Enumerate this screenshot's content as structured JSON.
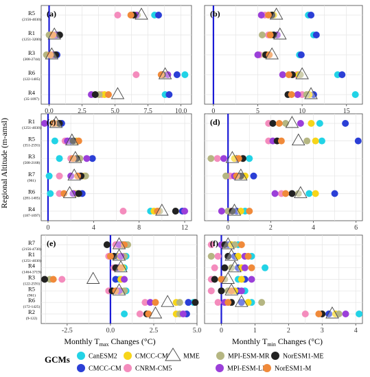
{
  "figure": {
    "y_axis_label": "Regional Altitude (m-amsl)",
    "x_label_left": "Monthly T",
    "x_label_left_sub": "max",
    "x_label_left_rest": " Changes (",
    "x_label_right": "Monthly T",
    "x_label_right_sub": "min",
    "x_label_right_rest": " Changes (",
    "x_label_unit": "°C)",
    "legend_title": "GCMs"
  },
  "legend": [
    {
      "name": "CanESM2",
      "color": "#22d3e6",
      "shape": "circle"
    },
    {
      "name": "CMCC-CMS",
      "color": "#f7d51a",
      "shape": "circle"
    },
    {
      "name": "MME",
      "color": "#ffffff",
      "shape": "triangle"
    },
    {
      "name": "MPI-ESM-MR",
      "color": "#b5b682",
      "shape": "circle"
    },
    {
      "name": "NorESM1-ME",
      "color": "#222222",
      "shape": "circle"
    },
    {
      "name": "CMCC-CM",
      "color": "#2b3fd6",
      "shape": "circle"
    },
    {
      "name": "CNRM-CM5",
      "color": "#f48cbd",
      "shape": "circle"
    },
    {
      "name": "MPI-ESM-LR",
      "color": "#9b3fd9",
      "shape": "circle"
    },
    {
      "name": "NorESM1-M",
      "color": "#f08a3a",
      "shape": "circle"
    }
  ],
  "chart_data": [
    {
      "panel": "(a)",
      "type": "scatter",
      "xlim": [
        -0.6,
        10.8
      ],
      "xticks": [
        0.0,
        2.5,
        5.0,
        7.5,
        10.0
      ],
      "xtick_labels": [
        "0.0",
        "2.5",
        "5.0",
        "7.5",
        "10.0"
      ],
      "rows": [
        {
          "region": "R5",
          "range": "(2156-4030)",
          "values": {
            "CanESM2": 8.0,
            "CMCC-CMS": 6.5,
            "MPI-ESM-MR": 6.7,
            "NorESM1-ME": 6.4,
            "CMCC-CM": 8.3,
            "CNRM-CM5": 5.2,
            "MPI-ESM-LR": 6.6,
            "NorESM1-M": 6.2,
            "MME": 7.0
          }
        },
        {
          "region": "R1",
          "range": "(1251-3200)",
          "values": {
            "CanESM2": 0.4,
            "CMCC-CMS": 0.2,
            "MPI-ESM-MR": 0.0,
            "NorESM1-ME": 0.8,
            "CMCC-CM": 0.6,
            "CNRM-CM5": 0.1,
            "MPI-ESM-LR": 0.5,
            "NorESM1-M": 0.3,
            "MME": 0.4
          }
        },
        {
          "region": "R3",
          "range": "(308-2744)",
          "values": {
            "CanESM2": 0.3,
            "CMCC-CMS": 0.2,
            "MPI-ESM-MR": -0.2,
            "NorESM1-ME": 0.5,
            "CMCC-CM": 0.6,
            "CNRM-CM5": 0.4,
            "MPI-ESM-LR": 0.3,
            "NorESM1-M": 0.1,
            "MME": 0.2
          }
        },
        {
          "region": "R6",
          "range": "(122-1405)",
          "values": {
            "CanESM2": 10.3,
            "CMCC-CMS": 8.8,
            "MPI-ESM-MR": 8.7,
            "NorESM1-ME": 8.6,
            "CMCC-CM": 9.7,
            "CNRM-CM5": 6.6,
            "MPI-ESM-LR": 9.0,
            "NorESM1-M": 8.5,
            "MME": 8.8
          }
        },
        {
          "region": "R4",
          "range": "(35-1097)",
          "values": {
            "CanESM2": 8.8,
            "CMCC-CMS": 4.2,
            "MPI-ESM-MR": 3.8,
            "NorESM1-ME": 3.5,
            "CMCC-CM": 9.1,
            "CNRM-CM5": 4.0,
            "MPI-ESM-LR": 3.2,
            "NorESM1-M": 4.5,
            "MME": 5.2
          }
        }
      ]
    },
    {
      "panel": "(b)",
      "type": "scatter",
      "xlim": [
        -1.0,
        16.8
      ],
      "xticks": [
        0,
        5,
        10,
        15
      ],
      "xtick_labels": [
        "0",
        "5",
        "10",
        "15"
      ],
      "rows": [
        {
          "region": "R5",
          "range": "",
          "values": {
            "CanESM2": 10.7,
            "CMCC-CMS": 6.8,
            "MPI-ESM-MR": 6.5,
            "NorESM1-ME": 6.6,
            "CMCC-CM": 11.0,
            "CNRM-CM5": 5.8,
            "MPI-ESM-LR": 5.4,
            "NorESM1-M": 6.2,
            "MME": 7.1
          }
        },
        {
          "region": "R1",
          "range": "",
          "values": {
            "CanESM2": 11.3,
            "CMCC-CMS": 6.5,
            "MPI-ESM-MR": 5.5,
            "NorESM1-ME": 6.8,
            "CMCC-CM": 11.6,
            "CNRM-CM5": 6.2,
            "MPI-ESM-LR": 7.2,
            "NorESM1-M": 6.4,
            "MME": 7.5
          }
        },
        {
          "region": "R3",
          "range": "",
          "values": {
            "CanESM2": 9.7,
            "CMCC-CMS": 6.0,
            "MPI-ESM-MR": 5.8,
            "NorESM1-ME": 5.9,
            "CMCC-CM": 9.9,
            "CNRM-CM5": 5.2,
            "MPI-ESM-LR": 5.0,
            "NorESM1-M": 6.3,
            "MME": 6.6
          }
        },
        {
          "region": "R6",
          "range": "",
          "values": {
            "CanESM2": 14.0,
            "CMCC-CMS": 9.6,
            "MPI-ESM-MR": 9.8,
            "NorESM1-ME": 8.9,
            "CMCC-CM": 14.5,
            "CNRM-CM5": 9.4,
            "MPI-ESM-LR": 7.8,
            "NorESM1-M": 8.5,
            "MME": 10.0
          }
        },
        {
          "region": "R4",
          "range": "",
          "values": {
            "CanESM2": 16.0,
            "CMCC-CMS": 10.8,
            "MPI-ESM-MR": 10.5,
            "NorESM1-ME": 8.4,
            "CMCC-CM": 11.3,
            "CNRM-CM5": 10.0,
            "MPI-ESM-LR": 9.5,
            "NorESM1-M": 8.8,
            "MME": 11.0
          }
        }
      ]
    },
    {
      "panel": "(c)",
      "type": "scatter",
      "xlim": [
        -0.6,
        12.6
      ],
      "xticks": [
        0,
        4,
        8,
        12
      ],
      "xtick_labels": [
        "0",
        "4",
        "8",
        "12"
      ],
      "rows": [
        {
          "region": "R1",
          "range": "(1251-4030)",
          "values": {
            "CanESM2": 0.6,
            "CMCC-CMS": 0.9,
            "MPI-ESM-MR": 0.4,
            "NorESM1-ME": 1.0,
            "CMCC-CM": 1.2,
            "CNRM-CM5": 0.7,
            "MPI-ESM-LR": -0.3,
            "NorESM1-M": 0.5,
            "MME": 0.7
          }
        },
        {
          "region": "R5",
          "range": "(351-2591)",
          "values": {
            "CanESM2": 0.6,
            "CMCC-CMS": 2.5,
            "MPI-ESM-MR": 2.3,
            "NorESM1-ME": 2.2,
            "CMCC-CM": 2.0,
            "CNRM-CM5": 1.5,
            "MPI-ESM-LR": 1.7,
            "NorESM1-M": 2.7,
            "MME": 2.1
          }
        },
        {
          "region": "R3",
          "range": "(508-2168)",
          "values": {
            "CanESM2": 1.0,
            "CMCC-CMS": 2.7,
            "MPI-ESM-MR": 2.8,
            "NorESM1-ME": 2.5,
            "CMCC-CM": 3.9,
            "CNRM-CM5": 2.0,
            "MPI-ESM-LR": 3.4,
            "NorESM1-M": 2.2,
            "MME": 2.4
          }
        },
        {
          "region": "R7",
          "range": "(961)",
          "values": {
            "CanESM2": 0.1,
            "CMCC-CMS": 3.2,
            "MPI-ESM-MR": 3.3,
            "NorESM1-ME": 2.9,
            "CMCC-CM": 2.8,
            "CNRM-CM5": 1.0,
            "MPI-ESM-LR": 2.0,
            "NorESM1-M": 2.6,
            "MME": 2.3
          }
        },
        {
          "region": "R6",
          "range": "(281-1405)",
          "values": {
            "CanESM2": 0.2,
            "CMCC-CMS": 2.4,
            "MPI-ESM-MR": 2.6,
            "NorESM1-ME": 2.7,
            "CMCC-CM": 3.0,
            "CNRM-CM5": 1.0,
            "MPI-ESM-LR": 2.2,
            "NorESM1-M": 1.4,
            "MME": 1.9
          }
        },
        {
          "region": "R4",
          "range": "(187-1097)",
          "values": {
            "CanESM2": 9.0,
            "CMCC-CMS": 9.3,
            "MPI-ESM-MR": 9.8,
            "NorESM1-ME": 11.2,
            "CMCC-CM": 11.8,
            "CNRM-CM5": 6.6,
            "MPI-ESM-LR": 12.0,
            "NorESM1-M": 9.6,
            "MME": 10.0
          }
        }
      ]
    },
    {
      "panel": "(d)",
      "type": "scatter",
      "xlim": [
        -1.1,
        6.3
      ],
      "xticks": [
        0,
        2,
        4,
        6
      ],
      "xtick_labels": [
        "0",
        "2",
        "4",
        "6"
      ],
      "rows": [
        {
          "region": "R1",
          "range": "",
          "values": {
            "CanESM2": 4.3,
            "CMCC-CMS": 3.9,
            "MPI-ESM-MR": 2.7,
            "NorESM1-ME": 2.1,
            "CMCC-CM": 5.5,
            "CNRM-CM5": 1.9,
            "MPI-ESM-LR": 3.4,
            "NorESM1-M": 2.4,
            "MME": 3.0
          }
        },
        {
          "region": "R5",
          "range": "",
          "values": {
            "CanESM2": 4.4,
            "CMCC-CMS": 4.1,
            "MPI-ESM-MR": 3.7,
            "NorESM1-ME": 2.3,
            "CMCC-CM": 6.1,
            "CNRM-CM5": 1.9,
            "MPI-ESM-LR": 2.1,
            "NorESM1-M": 2.5,
            "MME": 3.3
          }
        },
        {
          "region": "R3",
          "range": "",
          "values": {
            "CanESM2": 1.0,
            "CMCC-CMS": 0.3,
            "MPI-ESM-MR": -0.8,
            "NorESM1-ME": 0.7,
            "CMCC-CM": 0.4,
            "CNRM-CM5": -0.5,
            "MPI-ESM-LR": -0.2,
            "NorESM1-M": 0.5,
            "MME": 0.2
          }
        },
        {
          "region": "R7",
          "range": "",
          "values": {
            "CanESM2": 0.5,
            "CMCC-CMS": 0.8,
            "MPI-ESM-MR": -0.1,
            "NorESM1-ME": 0.6,
            "CMCC-CM": 1.2,
            "CNRM-CM5": 0.1,
            "MPI-ESM-LR": 0.3,
            "NorESM1-M": 0.4,
            "MME": 0.6
          }
        },
        {
          "region": "R6",
          "range": "",
          "values": {
            "CanESM2": 3.8,
            "CMCC-CMS": 4.1,
            "MPI-ESM-MR": 3.3,
            "NorESM1-ME": 3.0,
            "CMCC-CM": 5.0,
            "CNRM-CM5": 2.5,
            "MPI-ESM-LR": 2.2,
            "NorESM1-M": 2.7,
            "MME": 3.4
          }
        },
        {
          "region": "R4",
          "range": "",
          "values": {
            "CanESM2": 0.8,
            "CMCC-CMS": 0.6,
            "MPI-ESM-MR": 0.0,
            "NorESM1-ME": 0.2,
            "CMCC-CM": 0.4,
            "CNRM-CM5": 0.1,
            "MPI-ESM-LR": -0.3,
            "NorESM1-M": 1.0,
            "MME": 0.3
          }
        }
      ]
    },
    {
      "panel": "(e)",
      "type": "scatter",
      "xlim": [
        -4.0,
        5.0
      ],
      "xticks": [
        -2.5,
        0.0,
        2.5,
        5.0
      ],
      "xtick_labels": [
        "-2.5",
        "0.0",
        "2.5",
        "5.0"
      ],
      "rows": [
        {
          "region": "R7",
          "range": "(2156-4730)",
          "values": {
            "CanESM2": 0.9,
            "CMCC-CMS": 0.6,
            "MPI-ESM-MR": 1.0,
            "NorESM1-ME": -0.2,
            "CMCC-CM": 0.7,
            "CNRM-CM5": 0.3,
            "MPI-ESM-LR": 0.5,
            "NorESM1-M": 0.8,
            "MME": 0.5
          }
        },
        {
          "region": "R1",
          "range": "(1251-4030)",
          "values": {
            "CanESM2": 0.9,
            "CMCC-CMS": 0.5,
            "MPI-ESM-MR": 0.8,
            "NorESM1-ME": 0.2,
            "CMCC-CM": 0.4,
            "CNRM-CM5": -0.1,
            "MPI-ESM-LR": 0.6,
            "NorESM1-M": 0.0,
            "MME": 0.5
          }
        },
        {
          "region": "R4",
          "range": "(1464-3719)",
          "values": {
            "CanESM2": 0.8,
            "CMCC-CMS": 0.7,
            "MPI-ESM-MR": 0.6,
            "NorESM1-ME": 0.3,
            "CMCC-CM": 0.5,
            "CNRM-CM5": 0.2,
            "MPI-ESM-LR": 0.4,
            "NorESM1-M": 0.6,
            "MME": 0.6
          }
        },
        {
          "region": "R3",
          "range": "(122-2591)",
          "values": {
            "CanESM2": 0.5,
            "CMCC-CMS": 0.6,
            "MPI-ESM-MR": -3.5,
            "NorESM1-ME": -3.8,
            "CMCC-CM": 0.3,
            "CNRM-CM5": -2.8,
            "MPI-ESM-LR": 0.8,
            "NorESM1-M": -3.3,
            "MME": -1.0
          }
        },
        {
          "region": "R5",
          "range": "(961)",
          "values": {
            "CanESM2": 0.9,
            "CMCC-CMS": 0.6,
            "MPI-ESM-MR": 0.8,
            "NorESM1-ME": 0.1,
            "CMCC-CM": 0.0,
            "CNRM-CM5": -0.1,
            "MPI-ESM-LR": 0.5,
            "NorESM1-M": 0.3,
            "MME": 0.5
          }
        },
        {
          "region": "R6",
          "range": "(172-1425)",
          "values": {
            "CanESM2": 4.8,
            "CMCC-CMS": 3.8,
            "MPI-ESM-MR": 4.0,
            "NorESM1-ME": 4.9,
            "CMCC-CM": 4.5,
            "CNRM-CM5": 2.0,
            "MPI-ESM-LR": 2.3,
            "NorESM1-M": 2.6,
            "MME": 3.3
          }
        },
        {
          "region": "R2",
          "range": "(9-122)",
          "values": {
            "CanESM2": 0.8,
            "CMCC-CMS": 3.8,
            "MPI-ESM-MR": 4.0,
            "NorESM1-ME": 2.1,
            "CMCC-CM": 4.4,
            "CNRM-CM5": 1.7,
            "MPI-ESM-LR": 4.2,
            "NorESM1-M": 2.2,
            "MME": 2.6
          }
        }
      ]
    },
    {
      "panel": "(f)",
      "type": "scatter",
      "xlim": [
        -0.5,
        4.2
      ],
      "xticks": [
        0,
        1,
        2,
        3,
        4
      ],
      "xtick_labels": [
        "0",
        "1",
        "2",
        "3",
        "4"
      ],
      "rows": [
        {
          "region": "R7",
          "range": "",
          "values": {
            "CanESM2": 0.5,
            "CMCC-CMS": 0.3,
            "MPI-ESM-MR": 0.4,
            "NorESM1-ME": 0.1,
            "CMCC-CM": 0.2,
            "CNRM-CM5": -0.3,
            "MPI-ESM-LR": 0.0,
            "NorESM1-M": 0.6,
            "MME": 0.2
          }
        },
        {
          "region": "R1",
          "range": "",
          "values": {
            "CanESM2": 0.9,
            "CMCC-CMS": 0.5,
            "MPI-ESM-MR": -0.3,
            "NorESM1-ME": 0.2,
            "CMCC-CM": 0.4,
            "CNRM-CM5": -0.1,
            "MPI-ESM-LR": 0.7,
            "NorESM1-M": 0.8,
            "MME": 0.3
          }
        },
        {
          "region": "R4",
          "range": "",
          "values": {
            "CanESM2": 1.3,
            "CMCC-CMS": 0.6,
            "MPI-ESM-MR": 0.3,
            "NorESM1-ME": 0.1,
            "CMCC-CM": 0.5,
            "CNRM-CM5": -0.2,
            "MPI-ESM-LR": 0.7,
            "NorESM1-M": 0.9,
            "MME": 0.4
          }
        },
        {
          "region": "R3",
          "range": "",
          "values": {
            "CanESM2": 0.5,
            "CMCC-CMS": 0.6,
            "MPI-ESM-MR": 0.1,
            "NorESM1-ME": -0.2,
            "CMCC-CM": 0.7,
            "CNRM-CM5": -0.3,
            "MPI-ESM-LR": 0.9,
            "NorESM1-M": 0.0,
            "MME": 0.2
          }
        },
        {
          "region": "R5",
          "range": "",
          "values": {
            "CanESM2": 0.7,
            "CMCC-CMS": 0.4,
            "MPI-ESM-MR": 0.2,
            "NorESM1-ME": 0.0,
            "CMCC-CM": 0.5,
            "CNRM-CM5": -0.3,
            "MPI-ESM-LR": 0.6,
            "NorESM1-M": 0.3,
            "MME": 0.3
          }
        },
        {
          "region": "R6",
          "range": "",
          "values": {
            "CanESM2": 0.9,
            "CMCC-CMS": 0.8,
            "MPI-ESM-MR": 1.2,
            "NorESM1-ME": 0.3,
            "CMCC-CM": 0.6,
            "CNRM-CM5": -0.1,
            "MPI-ESM-LR": 0.1,
            "NorESM1-M": 0.2,
            "MME": 0.6
          }
        },
        {
          "region": "R2",
          "range": "",
          "values": {
            "CanESM2": 4.1,
            "CMCC-CMS": 3.4,
            "MPI-ESM-MR": 3.5,
            "NorESM1-ME": 3.0,
            "CMCC-CM": 3.2,
            "CNRM-CM5": 2.5,
            "MPI-ESM-LR": 3.7,
            "NorESM1-M": 2.9,
            "MME": 3.3
          }
        }
      ]
    }
  ]
}
